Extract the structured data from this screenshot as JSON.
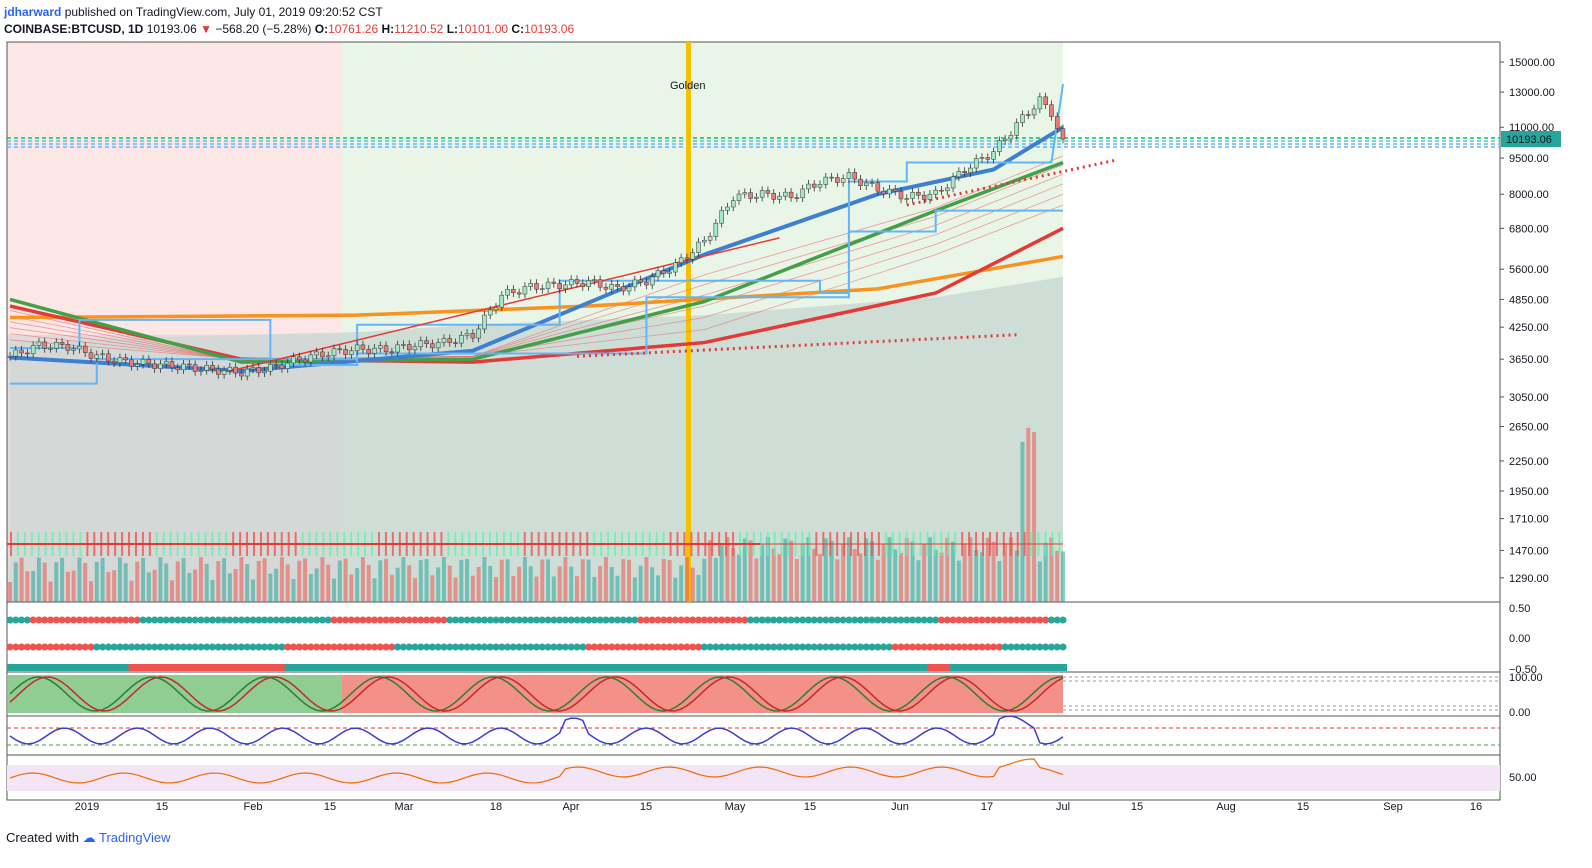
{
  "header": {
    "user": "jdharward",
    "published_text": "published on TradingView.com, July 01, 2019 09:20:52 CST",
    "symbol": "COINBASE:BTCUSD, 1D",
    "last": "10193.06",
    "arrow": "▼",
    "change": "−568.20 (−5.28%)",
    "o_label": "O:",
    "o_val": "10761.26",
    "h_label": "H:",
    "h_val": "11210.52",
    "l_label": "L:",
    "l_val": "10101.00",
    "c_label": "C:",
    "c_val": "10193.06"
  },
  "footer": {
    "created": "Created with",
    "brand": "TradingView"
  },
  "chart_data": {
    "type": "line",
    "title": "COINBASE:BTCUSD, 1D",
    "scale": "log",
    "ylim": [
      1150,
      16500
    ],
    "price_ticks": [
      "15000.00",
      "13000.00",
      "11000.00",
      "9500.00",
      "8000.00",
      "6800.00",
      "5600.00",
      "4850.00",
      "4250.00",
      "3650.00",
      "3050.00",
      "2650.00",
      "2250.00",
      "1950.00",
      "1710.00",
      "1470.00",
      "1290.00"
    ],
    "price_tick_values": [
      15000,
      13000,
      11000,
      9500,
      8000,
      6800,
      5600,
      4850,
      4250,
      3650,
      3050,
      2650,
      2250,
      1950,
      1710,
      1470,
      1290
    ],
    "last_price_tag": "10193.06",
    "x_ticks": [
      "2019",
      "15",
      "Feb",
      "15",
      "Mar",
      "18",
      "Apr",
      "15",
      "May",
      "15",
      "Jun",
      "17",
      "Jul",
      "15",
      "Aug",
      "15",
      "Sep",
      "16"
    ],
    "annotation": "Golden",
    "price_series": [
      {
        "x": 0,
        "y": 3700
      },
      {
        "x": 5,
        "y": 3900
      },
      {
        "x": 10,
        "y": 3880
      },
      {
        "x": 15,
        "y": 3700
      },
      {
        "x": 20,
        "y": 3600
      },
      {
        "x": 25,
        "y": 3560
      },
      {
        "x": 30,
        "y": 3520
      },
      {
        "x": 35,
        "y": 3470
      },
      {
        "x": 40,
        "y": 3430
      },
      {
        "x": 45,
        "y": 3500
      },
      {
        "x": 50,
        "y": 3650
      },
      {
        "x": 55,
        "y": 3760
      },
      {
        "x": 60,
        "y": 3830
      },
      {
        "x": 65,
        "y": 3820
      },
      {
        "x": 70,
        "y": 3900
      },
      {
        "x": 75,
        "y": 3950
      },
      {
        "x": 80,
        "y": 4100
      },
      {
        "x": 85,
        "y": 4950
      },
      {
        "x": 90,
        "y": 5150
      },
      {
        "x": 95,
        "y": 5200
      },
      {
        "x": 100,
        "y": 5270
      },
      {
        "x": 105,
        "y": 5100
      },
      {
        "x": 110,
        "y": 5300
      },
      {
        "x": 115,
        "y": 5700
      },
      {
        "x": 120,
        "y": 6400
      },
      {
        "x": 125,
        "y": 7900
      },
      {
        "x": 130,
        "y": 8000
      },
      {
        "x": 135,
        "y": 7900
      },
      {
        "x": 140,
        "y": 8500
      },
      {
        "x": 145,
        "y": 8700
      },
      {
        "x": 150,
        "y": 8200
      },
      {
        "x": 155,
        "y": 7900
      },
      {
        "x": 160,
        "y": 8000
      },
      {
        "x": 165,
        "y": 9000
      },
      {
        "x": 170,
        "y": 9800
      },
      {
        "x": 175,
        "y": 11500
      },
      {
        "x": 178,
        "y": 12500
      },
      {
        "x": 180,
        "y": 11800
      },
      {
        "x": 182,
        "y": 10193
      }
    ],
    "bands": [
      {
        "name": "",
        "color": "#f7931e",
        "points": [
          [
            0,
            4450
          ],
          [
            60,
            4500
          ],
          [
            100,
            4700
          ],
          [
            150,
            5100
          ],
          [
            182,
            5950
          ]
        ]
      },
      {
        "name": "",
        "color": "#e53935",
        "points": [
          [
            0,
            4700
          ],
          [
            40,
            3650
          ],
          [
            80,
            3600
          ],
          [
            120,
            3950
          ],
          [
            160,
            5000
          ],
          [
            182,
            6800
          ]
        ]
      },
      {
        "name": "",
        "color": "#43a047",
        "points": [
          [
            0,
            4850
          ],
          [
            40,
            3600
          ],
          [
            80,
            3650
          ],
          [
            120,
            4800
          ],
          [
            160,
            7400
          ],
          [
            182,
            9300
          ]
        ]
      },
      {
        "name": "",
        "color": "#3f7fd2",
        "points": [
          [
            0,
            3680
          ],
          [
            40,
            3450
          ],
          [
            80,
            3800
          ],
          [
            120,
            6000
          ],
          [
            150,
            8000
          ],
          [
            170,
            9000
          ],
          [
            182,
            11000
          ]
        ]
      }
    ],
    "oscillators": {
      "panel1_ticks": [
        "0.50",
        "0.00",
        "−0.50"
      ],
      "panel2_ticks": [
        "100.00",
        "0.00"
      ],
      "panel3_ticks": [
        "50.00"
      ]
    }
  }
}
